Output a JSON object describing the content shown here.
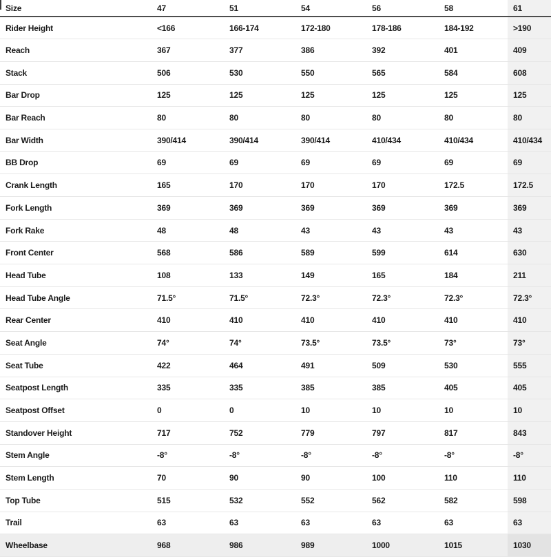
{
  "table": {
    "header": {
      "label": "Size",
      "sizes": [
        "47",
        "51",
        "54",
        "56",
        "58",
        "61"
      ]
    },
    "highlighted_column": "61",
    "highlighted_row": "Wheelbase",
    "rows": [
      {
        "label": "Rider Height",
        "values": [
          "<166",
          "166-174",
          "172-180",
          "178-186",
          "184-192",
          ">190"
        ]
      },
      {
        "label": "Reach",
        "values": [
          "367",
          "377",
          "386",
          "392",
          "401",
          "409"
        ]
      },
      {
        "label": "Stack",
        "values": [
          "506",
          "530",
          "550",
          "565",
          "584",
          "608"
        ]
      },
      {
        "label": "Bar Drop",
        "values": [
          "125",
          "125",
          "125",
          "125",
          "125",
          "125"
        ]
      },
      {
        "label": "Bar Reach",
        "values": [
          "80",
          "80",
          "80",
          "80",
          "80",
          "80"
        ]
      },
      {
        "label": "Bar Width",
        "values": [
          "390/414",
          "390/414",
          "390/414",
          "410/434",
          "410/434",
          "410/434"
        ]
      },
      {
        "label": "BB Drop",
        "values": [
          "69",
          "69",
          "69",
          "69",
          "69",
          "69"
        ]
      },
      {
        "label": "Crank Length",
        "values": [
          "165",
          "170",
          "170",
          "170",
          "172.5",
          "172.5"
        ]
      },
      {
        "label": "Fork Length",
        "values": [
          "369",
          "369",
          "369",
          "369",
          "369",
          "369"
        ]
      },
      {
        "label": "Fork Rake",
        "values": [
          "48",
          "48",
          "43",
          "43",
          "43",
          "43"
        ]
      },
      {
        "label": "Front Center",
        "values": [
          "568",
          "586",
          "589",
          "599",
          "614",
          "630"
        ]
      },
      {
        "label": "Head Tube",
        "values": [
          "108",
          "133",
          "149",
          "165",
          "184",
          "211"
        ]
      },
      {
        "label": "Head Tube Angle",
        "values": [
          "71.5°",
          "71.5°",
          "72.3°",
          "72.3°",
          "72.3°",
          "72.3°"
        ]
      },
      {
        "label": "Rear Center",
        "values": [
          "410",
          "410",
          "410",
          "410",
          "410",
          "410"
        ]
      },
      {
        "label": "Seat Angle",
        "values": [
          "74°",
          "74°",
          "73.5°",
          "73.5°",
          "73°",
          "73°"
        ]
      },
      {
        "label": "Seat Tube",
        "values": [
          "422",
          "464",
          "491",
          "509",
          "530",
          "555"
        ]
      },
      {
        "label": "Seatpost Length",
        "values": [
          "335",
          "335",
          "385",
          "385",
          "405",
          "405"
        ]
      },
      {
        "label": "Seatpost Offset",
        "values": [
          "0",
          "0",
          "10",
          "10",
          "10",
          "10"
        ]
      },
      {
        "label": "Standover Height",
        "values": [
          "717",
          "752",
          "779",
          "797",
          "817",
          "843"
        ]
      },
      {
        "label": "Stem Angle",
        "values": [
          "-8°",
          "-8°",
          "-8°",
          "-8°",
          "-8°",
          "-8°"
        ]
      },
      {
        "label": "Stem Length",
        "values": [
          "70",
          "90",
          "90",
          "100",
          "110",
          "110"
        ]
      },
      {
        "label": "Top Tube",
        "values": [
          "515",
          "532",
          "552",
          "562",
          "582",
          "598"
        ]
      },
      {
        "label": "Trail",
        "values": [
          "63",
          "63",
          "63",
          "63",
          "63",
          "63"
        ]
      },
      {
        "label": "Wheelbase",
        "values": [
          "968",
          "986",
          "989",
          "1000",
          "1015",
          "1030"
        ]
      }
    ]
  },
  "colors": {
    "text": "#1a1a1a",
    "header_border": "#4d4d4d",
    "row_divider": "#e6e6e6",
    "column_highlight": "#f1f1f1",
    "row_highlight": "#eeeeee",
    "row_column_intersection": "#e3e3e3",
    "background": "#ffffff"
  }
}
